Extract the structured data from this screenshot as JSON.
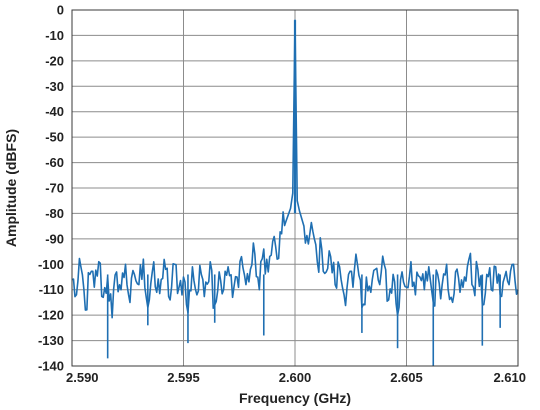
{
  "chart_data": {
    "type": "line",
    "title": "",
    "xlabel": "Frequency (GHz)",
    "ylabel": "Amplitude (dBFS)",
    "xlim": [
      2.59,
      2.61
    ],
    "ylim": [
      -140,
      0
    ],
    "x_ticks": [
      "2.590",
      "2.595",
      "2.600",
      "2.605",
      "2.610"
    ],
    "y_ticks": [
      "0",
      "-10",
      "-20",
      "-30",
      "-40",
      "-50",
      "-60",
      "-70",
      "-80",
      "-90",
      "-100",
      "-110",
      "-120",
      "-130",
      "-140"
    ],
    "grid": true,
    "legend": "none",
    "series": [
      {
        "color": "#1f6fb2",
        "points": [
          [
            2.59,
            -106
          ],
          [
            2.5902,
            -112
          ],
          [
            2.5904,
            -101
          ],
          [
            2.5906,
            -118
          ],
          [
            2.5908,
            -104
          ],
          [
            2.591,
            -109
          ],
          [
            2.5912,
            -99
          ],
          [
            2.5914,
            -113
          ],
          [
            2.5916,
            -105
          ],
          [
            2.5918,
            -121
          ],
          [
            2.592,
            -103
          ],
          [
            2.5922,
            -110
          ],
          [
            2.5924,
            -100
          ],
          [
            2.5926,
            -115
          ],
          [
            2.5928,
            -104
          ],
          [
            2.593,
            -108
          ],
          [
            2.5932,
            -98
          ],
          [
            2.5934,
            -117
          ],
          [
            2.5936,
            -103
          ],
          [
            2.5938,
            -111
          ],
          [
            2.594,
            -106
          ],
          [
            2.5942,
            -102
          ],
          [
            2.5944,
            -114
          ],
          [
            2.5946,
            -100
          ],
          [
            2.5948,
            -109
          ],
          [
            2.595,
            -105
          ],
          [
            2.5952,
            -119
          ],
          [
            2.5954,
            -101
          ],
          [
            2.5956,
            -112
          ],
          [
            2.5958,
            -104
          ],
          [
            2.596,
            -107
          ],
          [
            2.5962,
            -99
          ],
          [
            2.5964,
            -116
          ],
          [
            2.5966,
            -103
          ],
          [
            2.5968,
            -110
          ],
          [
            2.597,
            -101
          ],
          [
            2.5972,
            -113
          ],
          [
            2.5974,
            -105
          ],
          [
            2.5976,
            -97
          ],
          [
            2.5978,
            -108
          ],
          [
            2.598,
            -102
          ],
          [
            2.5982,
            -96
          ],
          [
            2.5984,
            -110
          ],
          [
            2.5986,
            -94
          ],
          [
            2.5988,
            -103
          ],
          [
            2.599,
            -91
          ],
          [
            2.5992,
            -98
          ],
          [
            2.5994,
            -88
          ],
          [
            2.5996,
            -83
          ],
          [
            2.5998,
            -78
          ],
          [
            2.5999,
            -72
          ],
          [
            2.6,
            -4
          ],
          [
            2.6001,
            -75
          ],
          [
            2.6002,
            -79
          ],
          [
            2.6004,
            -85
          ],
          [
            2.6006,
            -92
          ],
          [
            2.6008,
            -87
          ],
          [
            2.601,
            -99
          ],
          [
            2.6012,
            -94
          ],
          [
            2.6014,
            -103
          ],
          [
            2.6016,
            -97
          ],
          [
            2.6018,
            -108
          ],
          [
            2.602,
            -101
          ],
          [
            2.6022,
            -112
          ],
          [
            2.6024,
            -104
          ],
          [
            2.6026,
            -109
          ],
          [
            2.6028,
            -100
          ],
          [
            2.603,
            -117
          ],
          [
            2.6032,
            -105
          ],
          [
            2.6034,
            -111
          ],
          [
            2.6036,
            -102
          ],
          [
            2.6038,
            -108
          ],
          [
            2.604,
            -100
          ],
          [
            2.6042,
            -114
          ],
          [
            2.6044,
            -104
          ],
          [
            2.6046,
            -120
          ],
          [
            2.6048,
            -103
          ],
          [
            2.605,
            -109
          ],
          [
            2.6052,
            -99
          ],
          [
            2.6054,
            -112
          ],
          [
            2.6056,
            -105
          ],
          [
            2.6058,
            -110
          ],
          [
            2.606,
            -101
          ],
          [
            2.6062,
            -115
          ],
          [
            2.6064,
            -104
          ],
          [
            2.6066,
            -108
          ],
          [
            2.6068,
            -100
          ],
          [
            2.607,
            -113
          ],
          [
            2.6072,
            -103
          ],
          [
            2.6074,
            -111
          ],
          [
            2.6076,
            -105
          ],
          [
            2.6078,
            -98
          ],
          [
            2.608,
            -109
          ],
          [
            2.6082,
            -102
          ],
          [
            2.6084,
            -116
          ],
          [
            2.6086,
            -104
          ],
          [
            2.6088,
            -110
          ],
          [
            2.609,
            -101
          ],
          [
            2.6092,
            -112
          ],
          [
            2.6094,
            -105
          ],
          [
            2.6096,
            -108
          ],
          [
            2.6098,
            -100
          ],
          [
            2.61,
            -110
          ]
        ],
        "dips": [
          [
            2.5916,
            -137
          ],
          [
            2.5934,
            -124
          ],
          [
            2.5952,
            -131
          ],
          [
            2.5964,
            -123
          ],
          [
            2.5986,
            -128
          ],
          [
            2.603,
            -127
          ],
          [
            2.6046,
            -133
          ],
          [
            2.6062,
            -140
          ],
          [
            2.6084,
            -132
          ],
          [
            2.6092,
            -125
          ]
        ]
      }
    ]
  }
}
